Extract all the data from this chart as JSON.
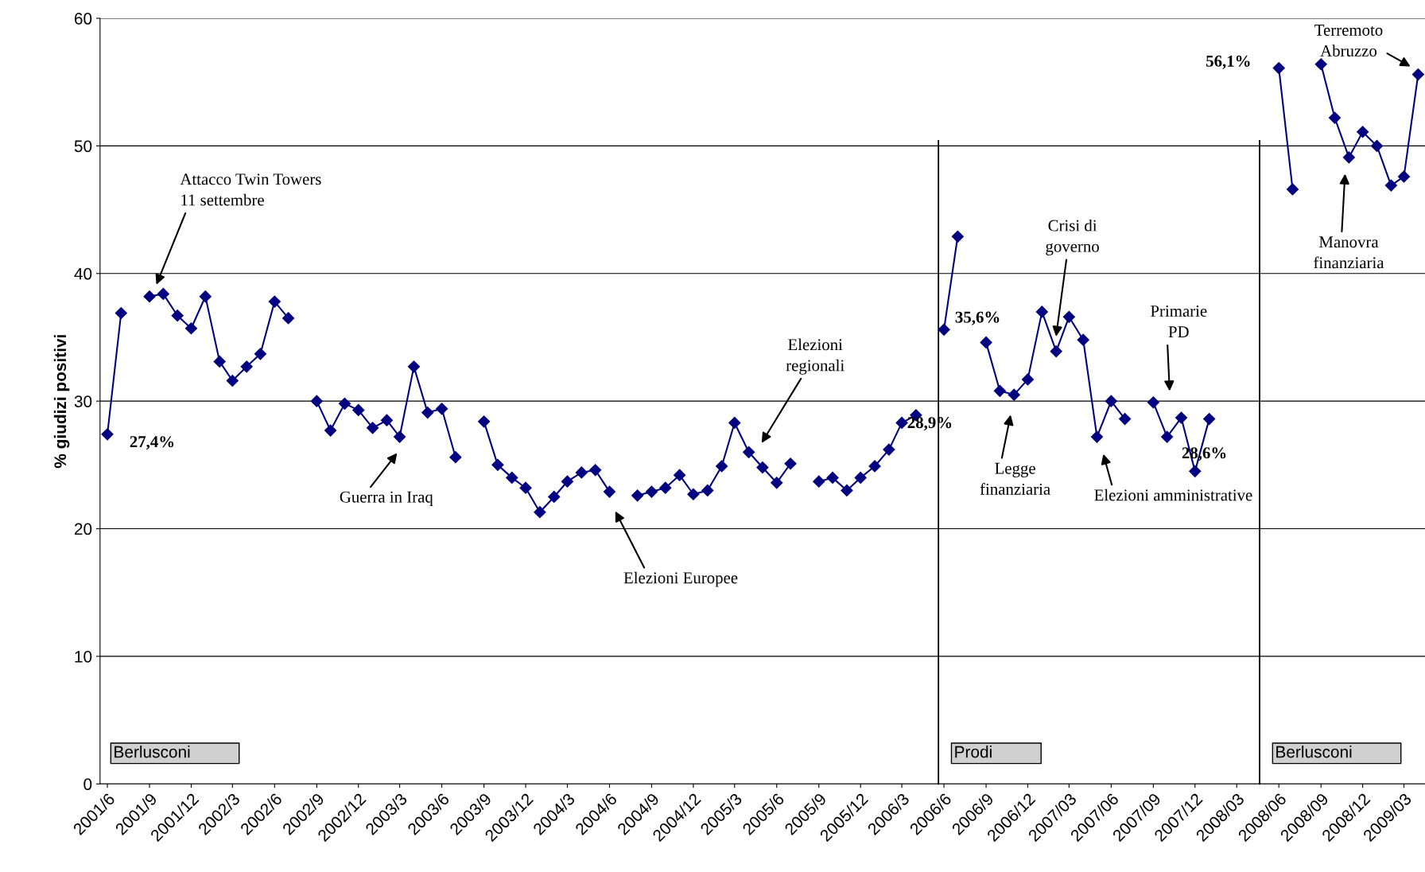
{
  "chart_data": {
    "type": "line",
    "ylabel": "% giudizi positivi",
    "x": [
      "2001-06",
      "2001-07",
      "2001-08",
      "2001-09",
      "2001-10",
      "2001-11",
      "2001-12",
      "2002-01",
      "2002-02",
      "2002-03",
      "2002-04",
      "2002-05",
      "2002-06",
      "2002-07",
      "2002-08",
      "2002-09",
      "2002-10",
      "2002-11",
      "2002-12",
      "2003-01",
      "2003-02",
      "2003-03",
      "2003-04",
      "2003-05",
      "2003-06",
      "2003-07",
      "2003-08",
      "2003-09",
      "2003-10",
      "2003-11",
      "2003-12",
      "2004-01",
      "2004-02",
      "2004-03",
      "2004-04",
      "2004-05",
      "2004-06",
      "2004-07",
      "2004-08",
      "2004-09",
      "2004-10",
      "2004-11",
      "2004-12",
      "2005-01",
      "2005-02",
      "2005-03",
      "2005-04",
      "2005-05",
      "2005-06",
      "2005-07",
      "2005-08",
      "2005-09",
      "2005-10",
      "2005-11",
      "2005-12",
      "2006-01",
      "2006-02",
      "2006-03",
      "2006-04",
      "2006-05",
      "2006-06",
      "2006-07",
      "2006-08",
      "2006-09",
      "2006-10",
      "2006-11",
      "2006-12",
      "2007-01",
      "2007-02",
      "2007-03",
      "2007-04",
      "2007-05",
      "2007-06",
      "2007-07",
      "2007-08",
      "2007-09",
      "2007-10",
      "2007-11",
      "2007-12",
      "2008-01",
      "2008-02",
      "2008-03",
      "2008-04",
      "2008-05",
      "2008-06",
      "2008-07",
      "2008-08",
      "2008-09",
      "2008-10",
      "2008-11",
      "2008-12",
      "2009-01",
      "2009-02",
      "2009-03",
      "2009-04"
    ],
    "series": [
      {
        "color": "#000080",
        "values": [
          27.4,
          36.9,
          null,
          38.2,
          38.4,
          36.7,
          35.7,
          38.2,
          33.1,
          31.6,
          32.7,
          33.7,
          37.8,
          36.5,
          null,
          30.0,
          27.7,
          29.8,
          29.3,
          27.9,
          28.5,
          27.2,
          32.7,
          29.1,
          29.4,
          25.6,
          null,
          28.4,
          25.0,
          24.0,
          23.2,
          21.3,
          22.5,
          23.7,
          24.4,
          24.6,
          22.9,
          null,
          22.6,
          22.9,
          23.2,
          24.2,
          22.7,
          23.0,
          24.9,
          28.3,
          26.0,
          24.8,
          23.6,
          25.1,
          null,
          23.7,
          24.0,
          23.0,
          24.0,
          24.9,
          26.2,
          28.3,
          28.9,
          null,
          35.6,
          42.9,
          null,
          34.6,
          30.8,
          30.5,
          31.7,
          37.0,
          33.9,
          36.6,
          34.8,
          27.2,
          30.0,
          28.6,
          null,
          29.9,
          27.2,
          28.7,
          24.5,
          28.6,
          null,
          null,
          null,
          null,
          56.1,
          46.6,
          null,
          56.4,
          52.2,
          49.1,
          51.1,
          50.0,
          46.9,
          47.6,
          55.6
        ],
        "value_labels": [
          "27,4%",
          null,
          null,
          null,
          null,
          null,
          null,
          null,
          null,
          null,
          null,
          null,
          null,
          null,
          null,
          null,
          null,
          null,
          null,
          null,
          null,
          null,
          null,
          null,
          null,
          null,
          null,
          null,
          null,
          null,
          null,
          null,
          null,
          null,
          null,
          null,
          null,
          null,
          null,
          null,
          null,
          null,
          null,
          null,
          null,
          null,
          null,
          null,
          null,
          null,
          null,
          null,
          null,
          null,
          null,
          null,
          null,
          null,
          "28,9%",
          null,
          "35,6%",
          null,
          null,
          null,
          null,
          null,
          null,
          null,
          null,
          null,
          null,
          null,
          null,
          null,
          null,
          null,
          null,
          null,
          null,
          "28,6%",
          null,
          null,
          null,
          null,
          "56,1%",
          null,
          null,
          null,
          null,
          null,
          null,
          null,
          null,
          null,
          null
        ]
      }
    ],
    "xlim": [
      "2001-05-16",
      "2009-04-16"
    ],
    "xticks": [
      {
        "value": "2001-06",
        "label": "2001/6"
      },
      {
        "value": "2001-09",
        "label": "2001/9"
      },
      {
        "value": "2001-12",
        "label": "2001/12"
      },
      {
        "value": "2002-03",
        "label": "2002/3"
      },
      {
        "value": "2002-06",
        "label": "2002/6"
      },
      {
        "value": "2002-09",
        "label": "2002/9"
      },
      {
        "value": "2002-12",
        "label": "2002/12"
      },
      {
        "value": "2003-03",
        "label": "2003/3"
      },
      {
        "value": "2003-06",
        "label": "2003/6"
      },
      {
        "value": "2003-09",
        "label": "2003/9"
      },
      {
        "value": "2003-12",
        "label": "2003/12"
      },
      {
        "value": "2004-03",
        "label": "2004/3"
      },
      {
        "value": "2004-06",
        "label": "2004/6"
      },
      {
        "value": "2004-09",
        "label": "2004/9"
      },
      {
        "value": "2004-12",
        "label": "2004/12"
      },
      {
        "value": "2005-03",
        "label": "2005/3"
      },
      {
        "value": "2005-06",
        "label": "2005/6"
      },
      {
        "value": "2005-09",
        "label": "2005/9"
      },
      {
        "value": "2005-12",
        "label": "2005/12"
      },
      {
        "value": "2006-03",
        "label": "2006/3"
      },
      {
        "value": "2006-06",
        "label": "2006/6"
      },
      {
        "value": "2006-09",
        "label": "2006/9"
      },
      {
        "value": "2006-12",
        "label": "2006/12"
      },
      {
        "value": "2007-03",
        "label": "2007/03"
      },
      {
        "value": "2007-06",
        "label": "2007/06"
      },
      {
        "value": "2007-09",
        "label": "2007/09"
      },
      {
        "value": "2007-12",
        "label": "2007/12"
      },
      {
        "value": "2008-03",
        "label": "2008/03"
      },
      {
        "value": "2008-06",
        "label": "2008/06"
      },
      {
        "value": "2008-09",
        "label": "2008/09"
      },
      {
        "value": "2008-12",
        "label": "2008/12"
      },
      {
        "value": "2009-03",
        "label": "2009/03"
      }
    ],
    "ylim": [
      0,
      60
    ],
    "yticks": [
      0,
      10,
      20,
      30,
      40,
      50,
      60
    ],
    "grid": "y",
    "marker": "diamond",
    "line_style": "solid",
    "legend": false,
    "ref_lines": [
      {
        "axis": "x",
        "value": "2006-05-20",
        "label": "Prodi",
        "color": "#000000"
      },
      {
        "axis": "x",
        "value": "2008-04-20",
        "label": "Berlusconi",
        "color": "#000000"
      }
    ],
    "annotations": [
      "Berlusconi",
      "Attacco Twin Towers\n11 settembre",
      "Guerra in Iraq",
      "Elezioni Europee",
      "Elezioni\nregionali",
      "Legge\nfinanziaria",
      "Crisi di\ngoverno",
      "Elezioni amministrative",
      "Primarie\nPD",
      "Manovra\nfinanziaria",
      "Terremoto\nAbruzzo"
    ]
  }
}
